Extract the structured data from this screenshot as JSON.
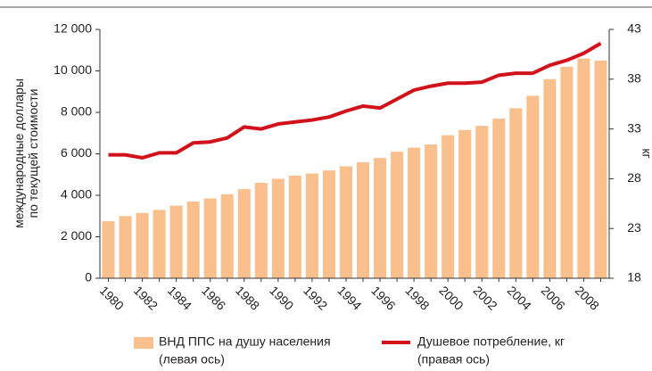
{
  "chart_data": {
    "type": "bar",
    "ylabel": [
      "международные доллары",
      "по текущей стоимости"
    ],
    "y2label": "кг",
    "categories": [
      "1980",
      null,
      "1982",
      null,
      "1984",
      null,
      "1986",
      null,
      "1988",
      null,
      "1990",
      null,
      "1992",
      null,
      "1994",
      null,
      "1996",
      null,
      "1998",
      null,
      "2000",
      null,
      "2002",
      null,
      "2004",
      null,
      "2006",
      null,
      "2008",
      null
    ],
    "series": [
      {
        "name": "ВНД ППС на душу населения",
        "note": "(левая ось)",
        "type": "bar",
        "color": "#f9c08d",
        "values": [
          2750,
          3000,
          3150,
          3300,
          3500,
          3700,
          3850,
          4050,
          4300,
          4600,
          4800,
          4950,
          5050,
          5200,
          5400,
          5600,
          5800,
          6100,
          6300,
          6450,
          6900,
          7150,
          7350,
          7700,
          8200,
          8800,
          9600,
          10200,
          10600,
          10500
        ]
      },
      {
        "name": "Душевое потребление, кг",
        "note": "(правая ось)",
        "type": "line",
        "axis": "y2",
        "color": "#d2121b",
        "values": [
          30.4,
          30.4,
          30.1,
          30.6,
          30.6,
          31.6,
          31.7,
          32.1,
          33.2,
          33.0,
          33.5,
          33.7,
          33.9,
          34.2,
          34.8,
          35.3,
          35.1,
          36.0,
          36.9,
          37.3,
          37.6,
          37.6,
          37.7,
          38.4,
          38.6,
          38.6,
          39.4,
          39.9,
          40.6,
          41.6
        ]
      }
    ],
    "ylim": [
      0,
      12000
    ],
    "yticks": [
      0,
      {
        "value": 2000,
        "label": "2 000"
      },
      {
        "value": 4000,
        "label": "4 000"
      },
      {
        "value": 6000,
        "label": "6 000"
      },
      {
        "value": 8000,
        "label": "8 000"
      },
      {
        "value": 10000,
        "label": "10 000"
      },
      {
        "value": 12000,
        "label": "12 000"
      }
    ],
    "y2lim": [
      18,
      43
    ],
    "y2ticks": [
      18,
      23,
      28,
      33,
      38,
      43
    ]
  }
}
